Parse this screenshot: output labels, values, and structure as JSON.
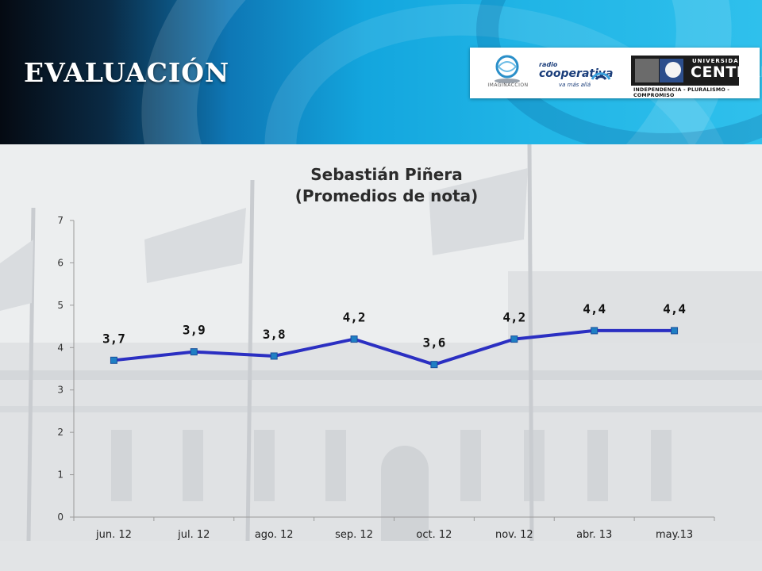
{
  "header": {
    "title": "EVALUACIÓN",
    "logos": {
      "imaginacion": "IMAGINACCION",
      "radio_small": "radio",
      "cooperativa": "cooperativa",
      "cooperativa_tagline": "va más allá",
      "university_small": "UNIVERSIDAD",
      "university_big": "CENTRAL",
      "university_motto": "INDEPENDENCIA - PLURALISMO - COMPROMISO"
    }
  },
  "colors": {
    "line": "#2b2fc2",
    "marker": "#1f7fc4",
    "header_blue": "#13a6de"
  },
  "chart_data": {
    "type": "line",
    "title_lines": [
      "Sebastián Piñera",
      "(Promedios de nota)"
    ],
    "categories": [
      "jun. 12",
      "jul. 12",
      "ago. 12",
      "sep. 12",
      "oct. 12",
      "nov. 12",
      "abr. 13",
      "may.13"
    ],
    "series": [
      {
        "values": [
          3.7,
          3.9,
          3.8,
          4.2,
          3.6,
          4.2,
          4.4,
          4.4
        ]
      }
    ],
    "data_labels": [
      "3,7",
      "3,9",
      "3,8",
      "4,2",
      "3,6",
      "4,2",
      "4,4",
      "4,4"
    ],
    "yticks": [
      "0",
      "1",
      "2",
      "3",
      "4",
      "5",
      "6",
      "7"
    ],
    "ylim": [
      0,
      7
    ],
    "grid": false,
    "legend": "none"
  }
}
